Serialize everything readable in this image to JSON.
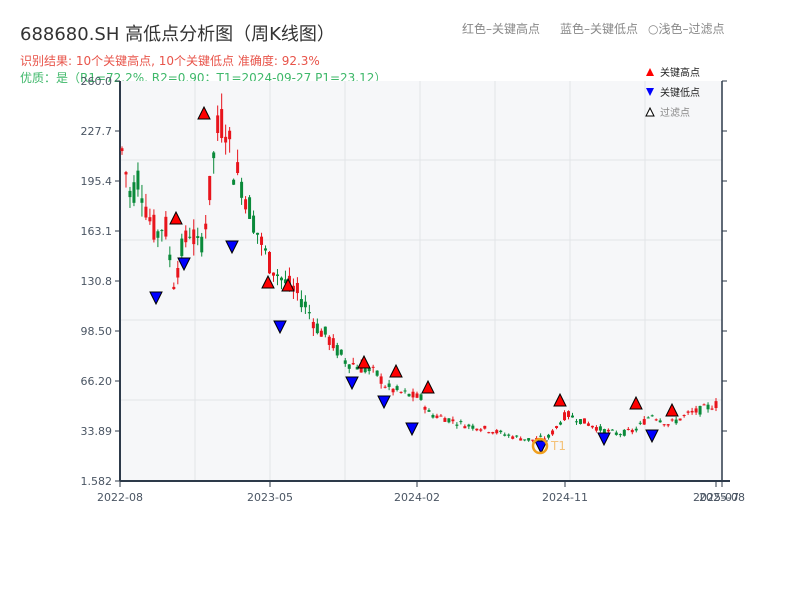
{
  "header": {
    "title": "688680.SH 高低点分析图（周K线图）",
    "result_line": "识别结果: 10个关键高点, 10个关键低点   准确度: 92.3%",
    "quality_line": "优质：是（R1=72.2%, R2=0.90；T1=2024-09-27 P1=23.12）"
  },
  "top_legend": {
    "red": "红色–关键高点",
    "blue": "蓝色–关键低点",
    "light": "○浅色–过滤点"
  },
  "colors": {
    "up": "#e8141c",
    "down": "#0a8a3a",
    "high_marker": "#ff0000",
    "low_marker": "#0000ff",
    "t1_ring": "#f0a020",
    "plot_bg": "#f6f7f9",
    "grid": "#e2e4e8",
    "axis": "#2d3a4a"
  },
  "chart_data": {
    "type": "candlestick",
    "title": "688680.SH 高低点分析图（周K线图）",
    "xlabel": "",
    "ylabel": "",
    "ylim": [
      1.582,
      260.0
    ],
    "yticks": [
      "1.582",
      "33.89",
      "66.20",
      "98.50",
      "130.8",
      "163.1",
      "195.4",
      "227.7",
      "260.0"
    ],
    "xticks": [
      "2022-08",
      "2023-05",
      "2024-02",
      "2024-11",
      "2025-07",
      "2025-08"
    ],
    "grid": true,
    "legend": {
      "position": "upper right",
      "entries": [
        "关键高点",
        "关键低点",
        "过滤点"
      ]
    },
    "key_highs": [
      {
        "date": "2022-12",
        "price": 170
      },
      {
        "date": "2023-01",
        "price": 238
      },
      {
        "date": "2023-05",
        "price": 128
      },
      {
        "date": "2023-06",
        "price": 127
      },
      {
        "date": "2023-11",
        "price": 76
      },
      {
        "date": "2023-12",
        "price": 70
      },
      {
        "date": "2024-02",
        "price": 61
      },
      {
        "date": "2024-11",
        "price": 52
      },
      {
        "date": "2025-04",
        "price": 50
      },
      {
        "date": "2025-06",
        "price": 46
      }
    ],
    "key_lows": [
      {
        "date": "2022-11",
        "price": 118
      },
      {
        "date": "2022-12",
        "price": 143
      },
      {
        "date": "2023-04",
        "price": 155
      },
      {
        "date": "2023-05",
        "price": 100
      },
      {
        "date": "2023-10",
        "price": 62
      },
      {
        "date": "2023-12",
        "price": 50
      },
      {
        "date": "2024-01",
        "price": 34
      },
      {
        "date": "2024-09",
        "price": 23.12
      },
      {
        "date": "2025-01",
        "price": 28
      },
      {
        "date": "2025-05",
        "price": 33
      }
    ],
    "annotation": {
      "label": "T1",
      "date": "2024-09-27",
      "price": 23.12
    },
    "legend_labels": {
      "high": "关键高点",
      "low": "关键低点",
      "filtered": "过滤点"
    }
  }
}
